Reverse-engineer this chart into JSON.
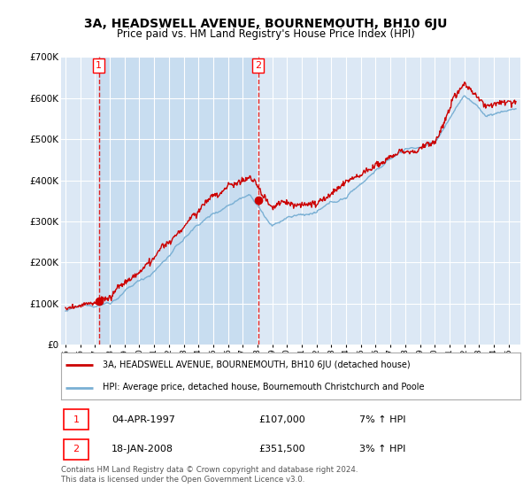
{
  "title": "3A, HEADSWELL AVENUE, BOURNEMOUTH, BH10 6JU",
  "subtitle": "Price paid vs. HM Land Registry's House Price Index (HPI)",
  "ylim": [
    0,
    700000
  ],
  "yticks": [
    0,
    100000,
    200000,
    300000,
    400000,
    500000,
    600000,
    700000
  ],
  "ytick_labels": [
    "£0",
    "£100K",
    "£200K",
    "£300K",
    "£400K",
    "£500K",
    "£600K",
    "£700K"
  ],
  "sale1_date": 1997.25,
  "sale1_price": 107000,
  "sale1_label": "1",
  "sale2_date": 2008.05,
  "sale2_price": 351500,
  "sale2_label": "2",
  "legend_line1": "3A, HEADSWELL AVENUE, BOURNEMOUTH, BH10 6JU (detached house)",
  "legend_line2": "HPI: Average price, detached house, Bournemouth Christchurch and Poole",
  "table_row1": [
    "1",
    "04-APR-1997",
    "£107,000",
    "7% ↑ HPI"
  ],
  "table_row2": [
    "2",
    "18-JAN-2008",
    "£351,500",
    "3% ↑ HPI"
  ],
  "footer": "Contains HM Land Registry data © Crown copyright and database right 2024.\nThis data is licensed under the Open Government Licence v3.0.",
  "plot_bg_color": "#dce8f5",
  "shaded_bg_color": "#c8ddf0",
  "grid_color": "#ffffff",
  "line_red": "#cc0000",
  "line_blue": "#7ab0d4",
  "dashed_red": "#dd2222"
}
